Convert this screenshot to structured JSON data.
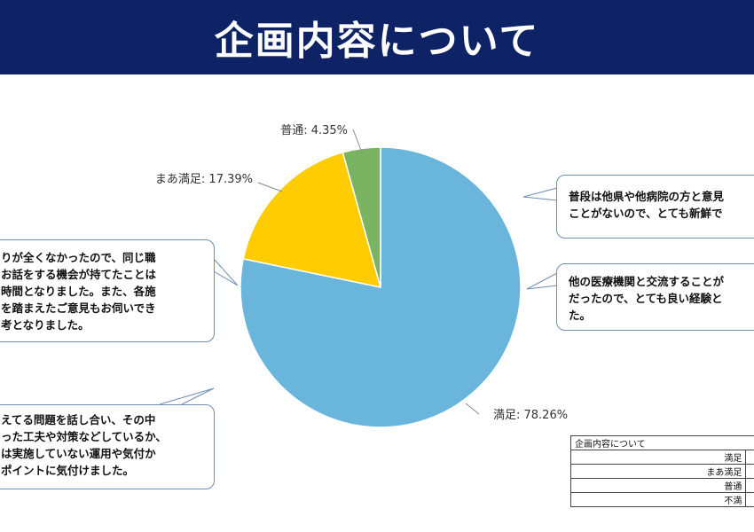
{
  "page": {
    "title": "企画内容について"
  },
  "chart_data": {
    "type": "pie",
    "categories": [
      "満足",
      "まあ満足",
      "普通",
      "不満"
    ],
    "values": [
      78.26,
      17.39,
      4.35,
      0
    ],
    "labels": [
      "満足: 78.26%",
      "まあ満足: 17.39%",
      "普通: 4.35%"
    ],
    "colors": [
      "#69b5dc",
      "#fecc00",
      "#7ab361",
      "#c0504d"
    ],
    "legend_placement": "bottom-right (table)"
  },
  "comments": [
    [
      "普段は他県や他病院の方と意見",
      "ことがないので、とても新鮮で"
    ],
    [
      "他の医療機関と交流することが",
      "だったので、とても良い経験と",
      "た。"
    ],
    [
      "りが全くなかったので、同じ職",
      "お話をする機会が持てたことは",
      "時間となりました。また、各施",
      "を踏まえたご意見もお伺いでき",
      "考となりました。"
    ],
    [
      "えてる問題を話し合い、その中",
      "った工夫や対策などしているか、",
      "は実施していない運用や気付か",
      "ポイントに気付けました。"
    ]
  ],
  "table": {
    "title": "企画内容について",
    "rows": [
      "満足",
      "まあ満足",
      "普通",
      "不満"
    ]
  }
}
